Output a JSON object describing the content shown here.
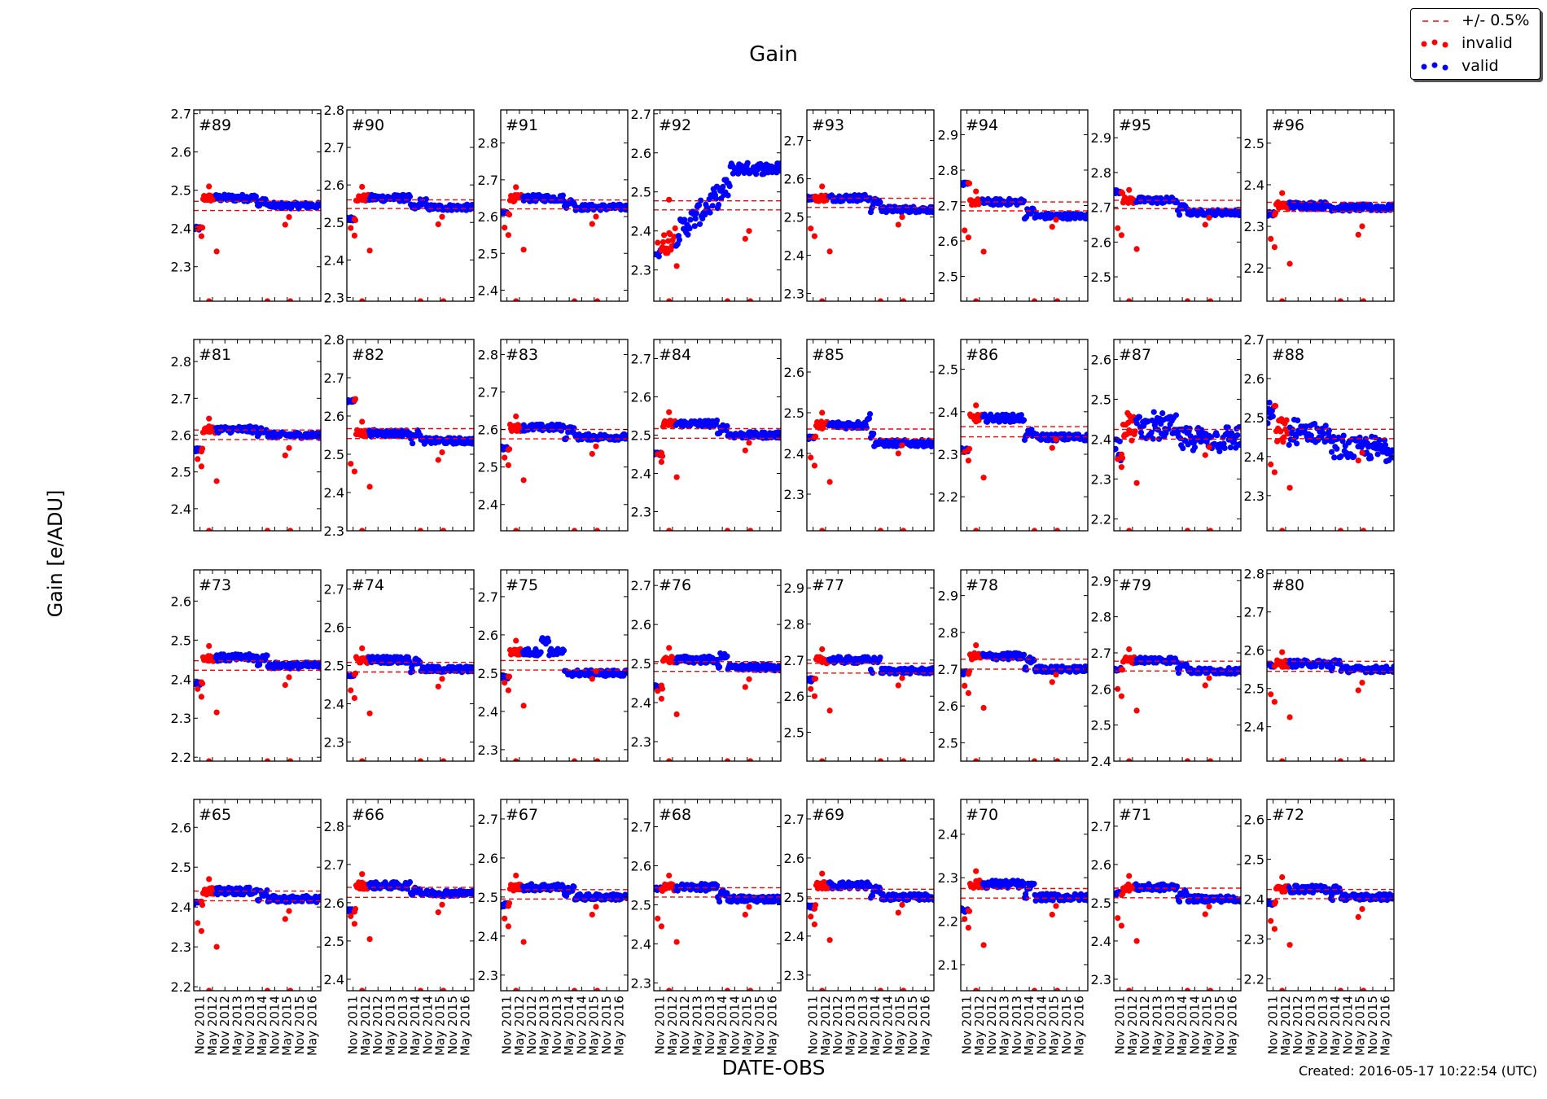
{
  "chart_data": {
    "type": "scatter",
    "title": "Gain",
    "xlabel": "DATE-OBS",
    "ylabel": "Gain [e/ADU]",
    "footer": "Created: 2016-05-17 10:22:54 (UTC)",
    "x_ticks": [
      "Nov 2011",
      "May 2012",
      "Nov 2012",
      "May 2013",
      "Nov 2013",
      "May 2014",
      "Nov 2014",
      "May 2015",
      "Nov 2015",
      "May 2016"
    ],
    "legend": {
      "placement": "top-right",
      "entries": [
        {
          "label": "+/- 0.5%",
          "style": "dashed-line",
          "color": "#ff0000"
        },
        {
          "label": "invalid",
          "style": "markers",
          "color": "#ff0000"
        },
        {
          "label": "valid",
          "style": "markers",
          "color": "#0000ff"
        }
      ]
    },
    "colors": {
      "valid": "#0000ff",
      "invalid": "#ff0000",
      "band": "#ff0000"
    },
    "panels": [
      {
        "id": "#89",
        "ylim": [
          2.21,
          2.71
        ],
        "ticks": [
          "2.7",
          "2.6",
          "2.5",
          "2.4",
          "2.3"
        ],
        "band": [
          2.447,
          2.471
        ],
        "start": 2.4,
        "level": 2.48,
        "end": 2.46,
        "bumps": [
          [
            0.55,
            0.01
          ]
        ]
      },
      {
        "id": "#90",
        "ylim": [
          2.29,
          2.8
        ],
        "ticks": [
          "2.8",
          "2.7",
          "2.6",
          "2.5",
          "2.4",
          "2.3"
        ],
        "band": [
          2.537,
          2.56
        ],
        "start": 2.51,
        "level": 2.565,
        "end": 2.54,
        "bumps": [
          [
            0.6,
            0.015
          ]
        ]
      },
      {
        "id": "#91",
        "ylim": [
          2.37,
          2.89
        ],
        "ticks": [
          "2.8",
          "2.7",
          "2.6",
          "2.5",
          "2.4"
        ],
        "band": [
          2.621,
          2.645
        ],
        "start": 2.61,
        "level": 2.65,
        "end": 2.625,
        "bumps": [
          [
            0.55,
            0.015
          ]
        ]
      },
      {
        "id": "#92",
        "ylim": [
          2.22,
          2.71
        ],
        "ticks": [
          "2.7",
          "2.6",
          "2.5",
          "2.4",
          "2.3"
        ],
        "band": [
          2.454,
          2.477
        ],
        "start": 2.34,
        "level": 2.45,
        "end": 2.56,
        "bumps": []
      },
      {
        "id": "#93",
        "ylim": [
          2.28,
          2.78
        ],
        "ticks": [
          "2.7",
          "2.6",
          "2.5",
          "2.4",
          "2.3"
        ],
        "band": [
          2.525,
          2.549
        ],
        "start": 2.55,
        "level": 2.55,
        "end": 2.52,
        "bumps": [
          [
            0.55,
            0.02
          ]
        ]
      },
      {
        "id": "#94",
        "ylim": [
          2.43,
          2.97
        ],
        "ticks": [
          "2.9",
          "2.8",
          "2.7",
          "2.6",
          "2.5"
        ],
        "band": [
          2.685,
          2.71
        ],
        "start": 2.76,
        "level": 2.71,
        "end": 2.67,
        "bumps": [
          [
            0.55,
            0.015
          ]
        ]
      },
      {
        "id": "#95",
        "ylim": [
          2.43,
          2.98
        ],
        "ticks": [
          "2.9",
          "2.8",
          "2.7",
          "2.6",
          "2.5"
        ],
        "band": [
          2.696,
          2.72
        ],
        "start": 2.745,
        "level": 2.72,
        "end": 2.685,
        "bumps": [
          [
            0.55,
            0.015
          ]
        ]
      },
      {
        "id": "#96",
        "ylim": [
          2.12,
          2.58
        ],
        "ticks": [
          "2.5",
          "2.4",
          "2.3",
          "2.2"
        ],
        "band": [
          2.336,
          2.358
        ],
        "start": 2.33,
        "level": 2.35,
        "end": 2.345,
        "bumps": []
      },
      {
        "id": "#81",
        "ylim": [
          2.34,
          2.86
        ],
        "ticks": [
          "2.8",
          "2.7",
          "2.6",
          "2.5",
          "2.4"
        ],
        "band": [
          2.588,
          2.614
        ],
        "start": 2.56,
        "level": 2.615,
        "end": 2.6,
        "bumps": [
          [
            0.55,
            0.015
          ]
        ]
      },
      {
        "id": "#82",
        "ylim": [
          2.3,
          2.8
        ],
        "ticks": [
          "2.8",
          "2.7",
          "2.6",
          "2.5",
          "2.4",
          "2.3"
        ],
        "band": [
          2.541,
          2.567
        ],
        "start": 2.64,
        "level": 2.555,
        "end": 2.535,
        "bumps": [
          [
            0.55,
            0.02
          ]
        ]
      },
      {
        "id": "#83",
        "ylim": [
          2.33,
          2.84
        ],
        "ticks": [
          "2.8",
          "2.7",
          "2.6",
          "2.5",
          "2.4"
        ],
        "band": [
          2.575,
          2.6
        ],
        "start": 2.55,
        "level": 2.605,
        "end": 2.58,
        "bumps": [
          [
            0.55,
            0.02
          ]
        ]
      },
      {
        "id": "#84",
        "ylim": [
          2.25,
          2.75
        ],
        "ticks": [
          "2.7",
          "2.6",
          "2.5",
          "2.4",
          "2.3"
        ],
        "band": [
          2.492,
          2.517
        ],
        "start": 2.45,
        "level": 2.53,
        "end": 2.5,
        "bumps": [
          [
            0.55,
            0.02
          ]
        ]
      },
      {
        "id": "#85",
        "ylim": [
          2.21,
          2.68
        ],
        "ticks": [
          "2.6",
          "2.5",
          "2.4",
          "2.3"
        ],
        "band": [
          2.436,
          2.46
        ],
        "start": 2.44,
        "level": 2.47,
        "end": 2.425,
        "bumps": [
          [
            0.5,
            0.02
          ]
        ]
      },
      {
        "id": "#86",
        "ylim": [
          2.12,
          2.57
        ],
        "ticks": [
          "2.5",
          "2.4",
          "2.3",
          "2.2"
        ],
        "band": [
          2.341,
          2.365
        ],
        "start": 2.31,
        "level": 2.385,
        "end": 2.34,
        "bumps": [
          [
            0.55,
            0.01
          ]
        ]
      },
      {
        "id": "#87",
        "ylim": [
          2.17,
          2.65
        ],
        "ticks": [
          "2.6",
          "2.5",
          "2.4",
          "2.3",
          "2.2"
        ],
        "band": [
          2.4,
          2.424
        ],
        "start": 2.38,
        "level": 2.43,
        "end": 2.4,
        "bumps": []
      },
      {
        "id": "#88",
        "ylim": [
          2.21,
          2.7
        ],
        "ticks": [
          "2.7",
          "2.6",
          "2.5",
          "2.4",
          "2.3"
        ],
        "band": [
          2.446,
          2.47
        ],
        "start": 2.51,
        "level": 2.46,
        "end": 2.42,
        "bumps": []
      },
      {
        "id": "#73",
        "ylim": [
          2.19,
          2.68
        ],
        "ticks": [
          "2.6",
          "2.5",
          "2.4",
          "2.3",
          "2.2"
        ],
        "band": [
          2.423,
          2.447
        ],
        "start": 2.39,
        "level": 2.455,
        "end": 2.435,
        "bumps": [
          [
            0.55,
            0.02
          ]
        ]
      },
      {
        "id": "#74",
        "ylim": [
          2.25,
          2.75
        ],
        "ticks": [
          "2.7",
          "2.6",
          "2.5",
          "2.4",
          "2.3"
        ],
        "band": [
          2.483,
          2.508
        ],
        "start": 2.475,
        "level": 2.515,
        "end": 2.49,
        "bumps": [
          [
            0.55,
            0.02
          ]
        ]
      },
      {
        "id": "#75",
        "ylim": [
          2.27,
          2.77
        ],
        "ticks": [
          "2.7",
          "2.6",
          "2.5",
          "2.4",
          "2.3"
        ],
        "band": [
          2.508,
          2.533
        ],
        "start": 2.49,
        "level": 2.555,
        "end": 2.5,
        "bumps": [
          [
            0.35,
            0.03
          ]
        ]
      },
      {
        "id": "#76",
        "ylim": [
          2.25,
          2.74
        ],
        "ticks": [
          "2.7",
          "2.6",
          "2.5",
          "2.4",
          "2.3"
        ],
        "band": [
          2.48,
          2.505
        ],
        "start": 2.44,
        "level": 2.51,
        "end": 2.49,
        "bumps": [
          [
            0.55,
            0.03
          ]
        ]
      },
      {
        "id": "#77",
        "ylim": [
          2.42,
          2.95
        ],
        "ticks": [
          "2.9",
          "2.8",
          "2.7",
          "2.6",
          "2.5"
        ],
        "band": [
          2.664,
          2.691
        ],
        "start": 2.645,
        "level": 2.7,
        "end": 2.67,
        "bumps": [
          [
            0.55,
            0.03
          ]
        ]
      },
      {
        "id": "#78",
        "ylim": [
          2.45,
          2.97
        ],
        "ticks": [
          "2.9",
          "2.8",
          "2.7",
          "2.6",
          "2.5"
        ],
        "band": [
          2.7,
          2.727
        ],
        "start": 2.69,
        "level": 2.735,
        "end": 2.7,
        "bumps": [
          [
            0.55,
            0.025
          ]
        ]
      },
      {
        "id": "#79",
        "ylim": [
          2.4,
          2.93
        ],
        "ticks": [
          "2.9",
          "2.8",
          "2.7",
          "2.6",
          "2.5",
          "2.4"
        ],
        "band": [
          2.65,
          2.677
        ],
        "start": 2.655,
        "level": 2.68,
        "end": 2.65,
        "bumps": [
          [
            0.55,
            0.02
          ]
        ]
      },
      {
        "id": "#80",
        "ylim": [
          2.31,
          2.81
        ],
        "ticks": [
          "2.8",
          "2.7",
          "2.6",
          "2.5",
          "2.4"
        ],
        "band": [
          2.545,
          2.571
        ],
        "start": 2.56,
        "level": 2.565,
        "end": 2.55,
        "bumps": [
          [
            0.55,
            0.02
          ]
        ]
      },
      {
        "id": "#65",
        "ylim": [
          2.19,
          2.67
        ],
        "ticks": [
          "2.6",
          "2.5",
          "2.4",
          "2.3",
          "2.2"
        ],
        "band": [
          2.416,
          2.44
        ],
        "start": 2.41,
        "level": 2.44,
        "end": 2.42,
        "bumps": [
          [
            0.55,
            0.015
          ]
        ]
      },
      {
        "id": "#66",
        "ylim": [
          2.37,
          2.87
        ],
        "ticks": [
          "2.8",
          "2.7",
          "2.6",
          "2.5",
          "2.4"
        ],
        "band": [
          2.614,
          2.64
        ],
        "start": 2.58,
        "level": 2.645,
        "end": 2.625,
        "bumps": [
          [
            0.55,
            0.01
          ]
        ]
      },
      {
        "id": "#67",
        "ylim": [
          2.26,
          2.75
        ],
        "ticks": [
          "2.7",
          "2.6",
          "2.5",
          "2.4",
          "2.3"
        ],
        "band": [
          2.495,
          2.519
        ],
        "start": 2.48,
        "level": 2.525,
        "end": 2.5,
        "bumps": [
          [
            0.55,
            0.02
          ]
        ]
      },
      {
        "id": "#68",
        "ylim": [
          2.28,
          2.77
        ],
        "ticks": [
          "2.7",
          "2.6",
          "2.5",
          "2.4",
          "2.3"
        ],
        "band": [
          2.52,
          2.544
        ],
        "start": 2.54,
        "level": 2.545,
        "end": 2.515,
        "bumps": [
          [
            0.55,
            0.015
          ]
        ]
      },
      {
        "id": "#69",
        "ylim": [
          2.26,
          2.75
        ],
        "ticks": [
          "2.7",
          "2.6",
          "2.5",
          "2.4",
          "2.3"
        ],
        "band": [
          2.496,
          2.52
        ],
        "start": 2.475,
        "level": 2.53,
        "end": 2.5,
        "bumps": [
          [
            0.55,
            0.02
          ]
        ]
      },
      {
        "id": "#70",
        "ylim": [
          2.04,
          2.48
        ],
        "ticks": [
          "2.4",
          "2.3",
          "2.2",
          "2.1"
        ],
        "band": [
          2.253,
          2.275
        ],
        "start": 2.225,
        "level": 2.285,
        "end": 2.255,
        "bumps": [
          [
            0.55,
            0.025
          ]
        ]
      },
      {
        "id": "#71",
        "ylim": [
          2.27,
          2.77
        ],
        "ticks": [
          "2.7",
          "2.6",
          "2.5",
          "2.4",
          "2.3"
        ],
        "band": [
          2.513,
          2.538
        ],
        "start": 2.525,
        "level": 2.54,
        "end": 2.51,
        "bumps": [
          [
            0.55,
            0.015
          ]
        ]
      },
      {
        "id": "#72",
        "ylim": [
          2.17,
          2.65
        ],
        "ticks": [
          "2.6",
          "2.5",
          "2.4",
          "2.3",
          "2.2"
        ],
        "band": [
          2.401,
          2.424
        ],
        "start": 2.39,
        "level": 2.425,
        "end": 2.405,
        "bumps": [
          [
            0.55,
            0.02
          ]
        ]
      }
    ]
  }
}
